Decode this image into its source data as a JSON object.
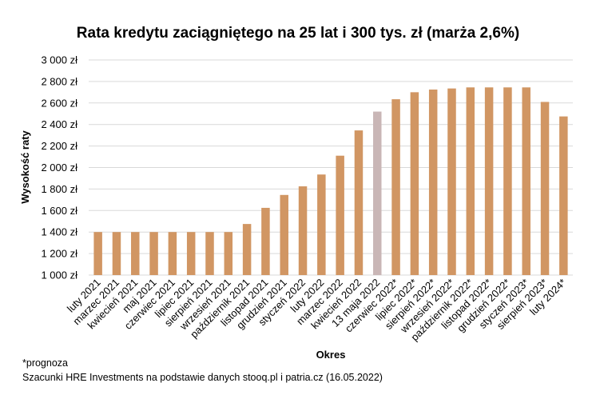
{
  "chart_data": {
    "type": "bar",
    "title": "Rata kredytu zaciągniętego na 25 lat i 300 tys. zł (marża 2,6%)",
    "xlabel": "Okres",
    "ylabel": "Wysokość raty",
    "ylim": [
      1000,
      3000
    ],
    "yticks": [
      "1 000 zł",
      "1 200 zł",
      "1 400 zł",
      "1 600 zł",
      "1 800 zł",
      "2 000 zł",
      "2 200 zł",
      "2 400 zł",
      "2 600 zł",
      "2 800 zł",
      "3 000 zł"
    ],
    "ytick_values": [
      1000,
      1200,
      1400,
      1600,
      1800,
      2000,
      2200,
      2400,
      2600,
      2800,
      3000
    ],
    "grid": true,
    "bar_color": "#d19663",
    "highlight_color": "#c9b6b6",
    "highlight_category": "13 maja 2022",
    "categories": [
      "luty 2021",
      "marzec 2021",
      "kwiecień 2021",
      "maj 2021",
      "czerwiec 2021",
      "lipiec 2021",
      "sierpień 2021",
      "wrzesień 2021",
      "październik 2021",
      "listopad 2021",
      "grudzień 2021",
      "styczeń 2022",
      "luty 2022",
      "marzec 2022",
      "kwiecień 2022",
      "13 maja 2022",
      "czerwiec 2022*",
      "lipiec 2022*",
      "sierpień 2022*",
      "wrzesień 2022*",
      "październik 2022*",
      "listopad 2022*",
      "grudzień 2022*",
      "styczeń 2023*",
      "sierpień 2023*",
      "luty 2024*"
    ],
    "values": [
      1400,
      1400,
      1400,
      1400,
      1400,
      1400,
      1400,
      1400,
      1475,
      1625,
      1745,
      1825,
      1935,
      2110,
      2345,
      2520,
      2635,
      2700,
      2725,
      2735,
      2745,
      2745,
      2745,
      2745,
      2610,
      2475
    ]
  },
  "footnotes": {
    "note": "*prognoza",
    "source": "Szacunki HRE Investments na podstawie danych stooq.pl i patria.cz (16.05.2022)"
  }
}
